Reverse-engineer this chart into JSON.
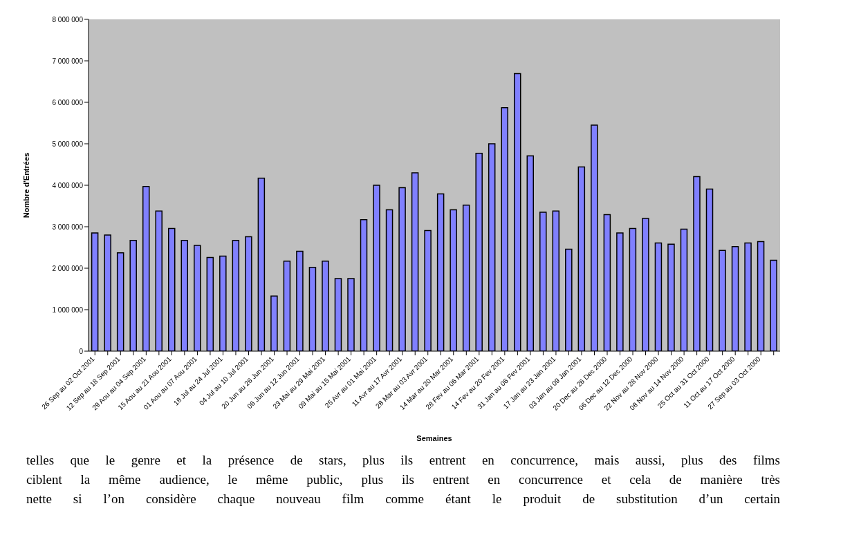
{
  "chart_data": {
    "type": "bar",
    "xlabel": "Semaines",
    "ylabel": "Nombre d'Entrées",
    "categories": [
      "26 Sep au 02 Oct 2001",
      null,
      "12 Sep au 18 Sep 2001",
      null,
      "29 Aou au 04 Sep 2001",
      null,
      "15 Aou au 21 Aou 2001",
      null,
      "01 Aou au 07 Aou 2001",
      null,
      "18 Jul au 24 Jul 2001",
      null,
      "04 Jul au 10 Jul 2001",
      null,
      "20 Jun au 26 Jun 2001",
      null,
      "06 Jun au 12 Jun 2001",
      null,
      "23 Mai au 29 Mai 2001",
      null,
      "09 Mai au 15 Mai 2001",
      null,
      "25 Avr au 01 Mai 2001",
      null,
      "11 Avr au 17 Avr 2001",
      null,
      "28 Mar au 03 Avr 2001",
      null,
      "14 Mar au 20 Mar 2001",
      null,
      "28 Fev au 06 Mar 2001",
      null,
      "14 Fev au 20 Fev 2001",
      null,
      "31 Jan au 06 Fev 2001",
      null,
      "17 Jan au 23 Jan 2001",
      null,
      "03 Jan au 09 Jan 2001",
      null,
      "20 Dec au 26 Dec 2000",
      null,
      "06 Dec au 12 Dec 2000",
      null,
      "22 Nov au 28 Nov 2000",
      null,
      "08 Nov au 14 Nov 2000",
      null,
      "25 Oct au 31 Oct 2000",
      null,
      "11 Oct au 17 Oct 2000",
      null,
      "27 Sep au 03 Oct 2000",
      null
    ],
    "values": [
      2850000,
      2800000,
      2370000,
      2670000,
      3970000,
      3380000,
      2960000,
      2670000,
      2550000,
      2260000,
      2290000,
      2670000,
      2760000,
      4170000,
      1330000,
      2170000,
      2410000,
      2020000,
      2170000,
      1750000,
      1750000,
      3170000,
      4000000,
      3410000,
      3940000,
      4300000,
      2910000,
      3790000,
      3410000,
      3520000,
      4770000,
      5000000,
      5870000,
      6690000,
      4710000,
      3350000,
      3380000,
      2460000,
      4440000,
      5450000,
      3290000,
      2850000,
      2960000,
      3200000,
      2610000,
      2580000,
      2940000,
      4210000,
      3910000,
      2430000,
      2520000,
      2610000,
      2640000,
      2190000
    ],
    "color": "#8080ff",
    "ylim": [
      0,
      8000000
    ],
    "yticks": [
      {
        "value": 0,
        "label": "0"
      },
      {
        "value": 1000000,
        "label": "1 000 000"
      },
      {
        "value": 2000000,
        "label": "2 000 000"
      },
      {
        "value": 3000000,
        "label": "3 000 000"
      },
      {
        "value": 4000000,
        "label": "4 000 000"
      },
      {
        "value": 5000000,
        "label": "5 000 000"
      },
      {
        "value": 6000000,
        "label": "6 000 000"
      },
      {
        "value": 7000000,
        "label": "7 000 000"
      },
      {
        "value": 8000000,
        "label": "8 000 000"
      }
    ],
    "grid": false,
    "annotations": [
      "telles que le genre et la présence de stars, plus ils entrent en concurrence, mais aussi, plus des films",
      "ciblent la même audience, le même public, plus ils entrent en concurrence et cela de manière très",
      "nette si l’on considère chaque nouveau film comme étant le produit de substitution d’un certain"
    ]
  }
}
